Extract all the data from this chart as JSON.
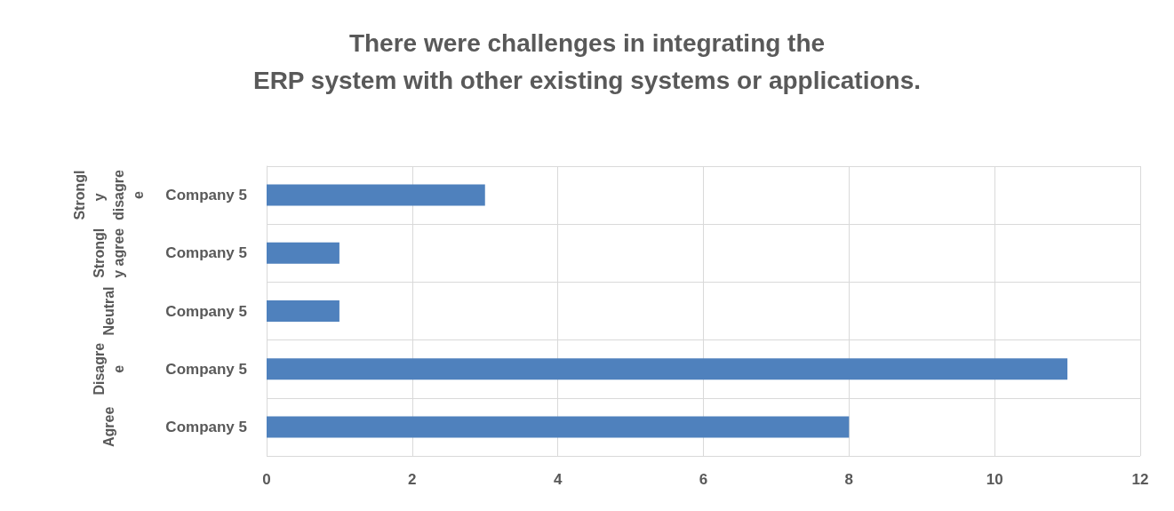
{
  "chart_data": {
    "type": "bar",
    "orientation": "horizontal",
    "title": "There were challenges in integrating the\nERP system with other existing systems or applications.",
    "categories": [
      "Strongly disagree",
      "Strongly agree",
      "Neutral",
      "Disagree",
      "Agree"
    ],
    "series": [
      {
        "name": "Company 5",
        "color": "#4f81bd",
        "values": [
          3,
          1,
          1,
          11,
          8
        ]
      }
    ],
    "xlim": [
      0,
      12
    ],
    "xticks": [
      0,
      2,
      4,
      6,
      8,
      10,
      12
    ],
    "grid": "x",
    "legend": false
  }
}
